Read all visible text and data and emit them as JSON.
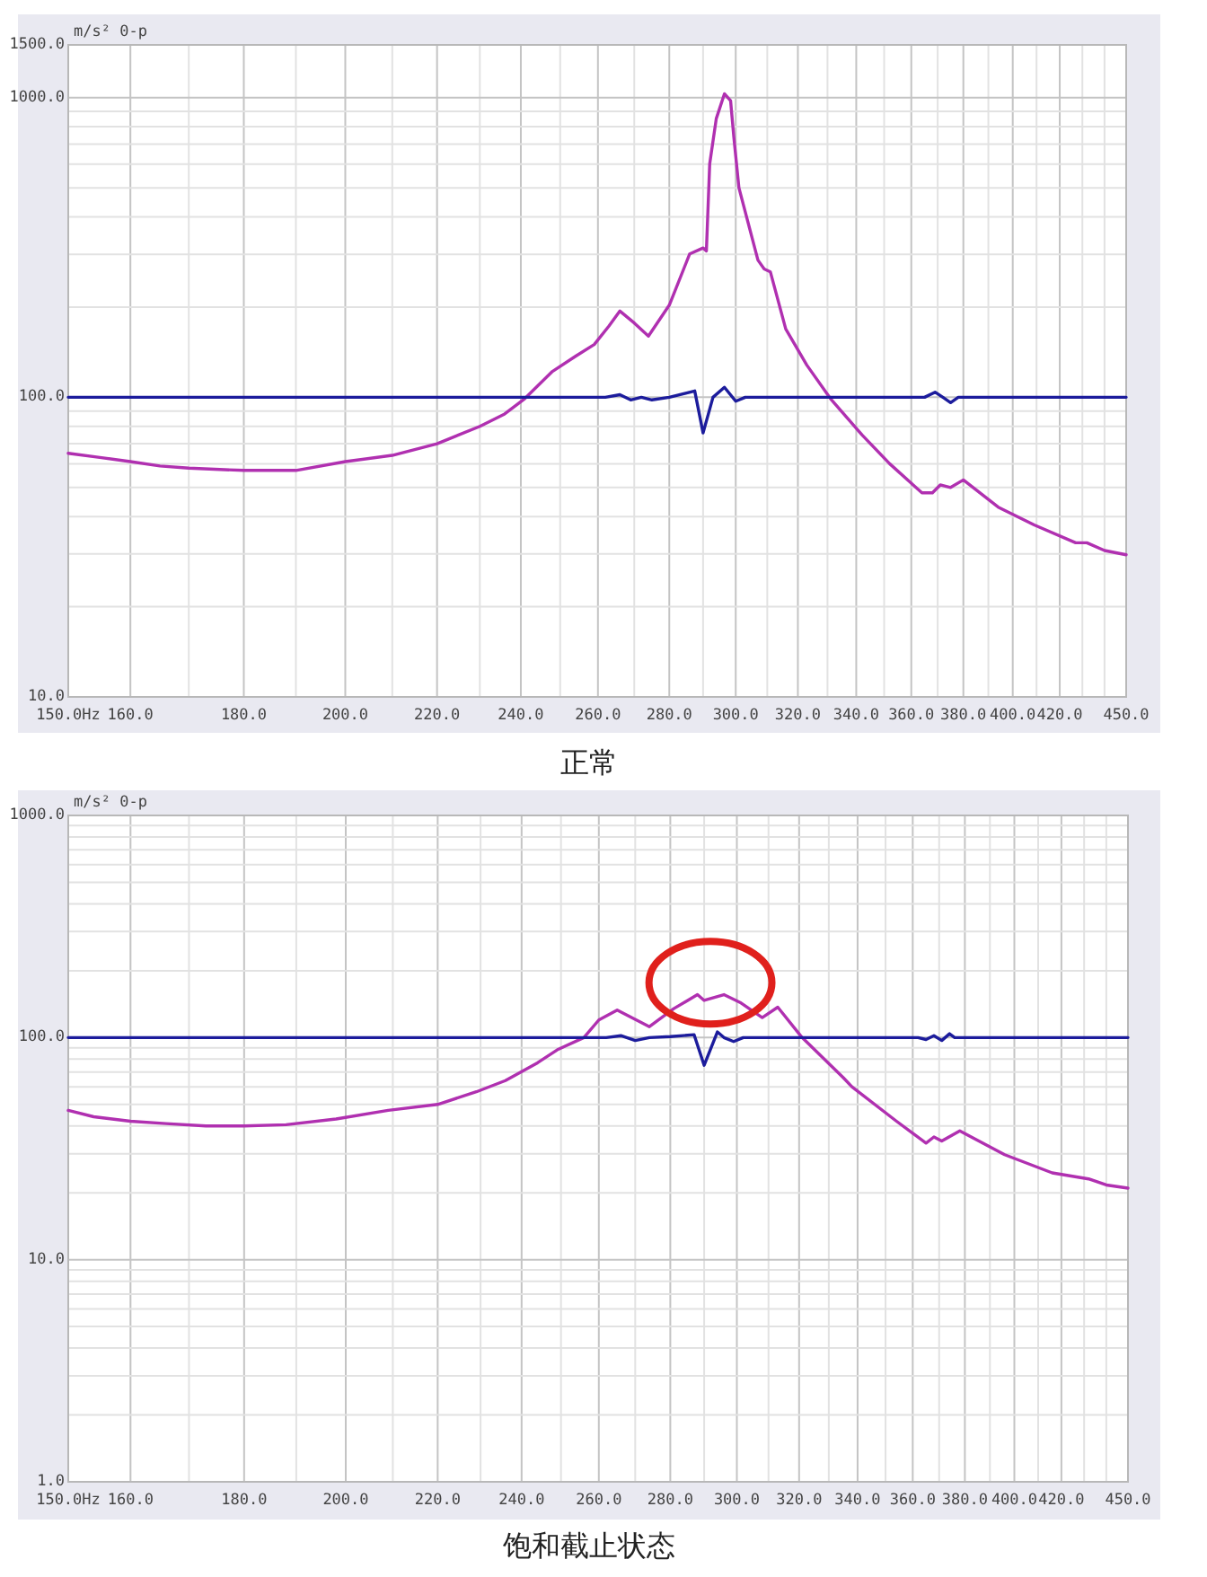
{
  "chart_data": [
    {
      "type": "line",
      "title": "正常",
      "ylabel": "m/s² 0-p",
      "log": "xy",
      "grid": true,
      "xlim": [
        150,
        450
      ],
      "ylim": [
        10,
        1500
      ],
      "xticks": [
        {
          "value": 150,
          "label": "150.0Hz"
        },
        {
          "value": 160,
          "label": "160.0"
        },
        {
          "value": 170,
          "label": null
        },
        {
          "value": 180,
          "label": "180.0"
        },
        {
          "value": 190,
          "label": null
        },
        {
          "value": 200,
          "label": "200.0"
        },
        {
          "value": 210,
          "label": null
        },
        {
          "value": 220,
          "label": "220.0"
        },
        {
          "value": 230,
          "label": null
        },
        {
          "value": 240,
          "label": "240.0"
        },
        {
          "value": 250,
          "label": null
        },
        {
          "value": 260,
          "label": "260.0"
        },
        {
          "value": 270,
          "label": null
        },
        {
          "value": 280,
          "label": "280.0"
        },
        {
          "value": 290,
          "label": null
        },
        {
          "value": 300,
          "label": "300.0"
        },
        {
          "value": 310,
          "label": null
        },
        {
          "value": 320,
          "label": "320.0"
        },
        {
          "value": 330,
          "label": null
        },
        {
          "value": 340,
          "label": "340.0"
        },
        {
          "value": 350,
          "label": null
        },
        {
          "value": 360,
          "label": "360.0"
        },
        {
          "value": 370,
          "label": null
        },
        {
          "value": 380,
          "label": "380.0"
        },
        {
          "value": 390,
          "label": null
        },
        {
          "value": 400,
          "label": "400.0"
        },
        {
          "value": 410,
          "label": null
        },
        {
          "value": 420,
          "label": "420.0"
        },
        {
          "value": 430,
          "label": null
        },
        {
          "value": 440,
          "label": null
        },
        {
          "value": 450,
          "label": "450.0"
        }
      ],
      "yticks": [
        {
          "value": 10,
          "label": "10.0"
        },
        {
          "value": 20,
          "label": null
        },
        {
          "value": 30,
          "label": null
        },
        {
          "value": 40,
          "label": null
        },
        {
          "value": 50,
          "label": null
        },
        {
          "value": 60,
          "label": null
        },
        {
          "value": 70,
          "label": null
        },
        {
          "value": 80,
          "label": null
        },
        {
          "value": 90,
          "label": null
        },
        {
          "value": 100,
          "label": "100.0"
        },
        {
          "value": 200,
          "label": null
        },
        {
          "value": 300,
          "label": null
        },
        {
          "value": 400,
          "label": null
        },
        {
          "value": 500,
          "label": null
        },
        {
          "value": 600,
          "label": null
        },
        {
          "value": 700,
          "label": null
        },
        {
          "value": 800,
          "label": null
        },
        {
          "value": 900,
          "label": null
        },
        {
          "value": 1000,
          "label": "1000.0"
        },
        {
          "value": 1500,
          "label": "1500.0"
        }
      ],
      "series": [
        {
          "color": "#b030b0",
          "x": [
            150,
            155,
            160,
            165,
            170,
            180,
            190,
            200,
            210,
            220,
            230,
            236,
            241,
            248,
            254,
            259,
            263,
            266,
            270,
            274,
            280,
            286,
            290,
            291,
            292,
            294,
            296.5,
            298.4,
            299.4,
            301,
            307,
            309,
            311,
            316,
            323,
            331,
            342,
            352,
            364,
            368,
            371,
            375,
            380,
            394,
            409,
            427,
            432,
            440,
            450
          ],
          "values": [
            65,
            63,
            61,
            59,
            58,
            57,
            57,
            61,
            64,
            70,
            80,
            88,
            99,
            122,
            137,
            150,
            173,
            194,
            177,
            160,
            203,
            301,
            315,
            308,
            601,
            851,
            1030,
            977,
            740,
            500,
            287,
            268,
            262,
            169,
            128,
            99,
            75,
            60,
            48,
            48,
            51,
            50,
            53,
            43,
            37.5,
            32.7,
            32.7,
            30.8,
            29.8
          ]
        },
        {
          "color": "#1c1c9c",
          "x": [
            150,
            262,
            266,
            269,
            272,
            275,
            280,
            287.5,
            290,
            293,
            296.5,
            300,
            303,
            365,
            369,
            372,
            375,
            378,
            450
          ],
          "values": [
            100,
            100,
            102,
            98,
            100,
            98,
            100,
            105,
            76,
            100,
            108,
            97,
            100,
            100,
            104,
            100,
            96,
            100,
            100
          ]
        }
      ]
    },
    {
      "type": "line",
      "title": "饱和截止状态",
      "ylabel": "m/s² 0-p",
      "log": "xy",
      "grid": true,
      "xlim": [
        150,
        450
      ],
      "ylim": [
        1,
        1000
      ],
      "xticks": [
        {
          "value": 150,
          "label": "150.0Hz"
        },
        {
          "value": 160,
          "label": "160.0"
        },
        {
          "value": 170,
          "label": null
        },
        {
          "value": 180,
          "label": "180.0"
        },
        {
          "value": 190,
          "label": null
        },
        {
          "value": 200,
          "label": "200.0"
        },
        {
          "value": 210,
          "label": null
        },
        {
          "value": 220,
          "label": "220.0"
        },
        {
          "value": 230,
          "label": null
        },
        {
          "value": 240,
          "label": "240.0"
        },
        {
          "value": 250,
          "label": null
        },
        {
          "value": 260,
          "label": "260.0"
        },
        {
          "value": 270,
          "label": null
        },
        {
          "value": 280,
          "label": "280.0"
        },
        {
          "value": 290,
          "label": null
        },
        {
          "value": 300,
          "label": "300.0"
        },
        {
          "value": 310,
          "label": null
        },
        {
          "value": 320,
          "label": "320.0"
        },
        {
          "value": 330,
          "label": null
        },
        {
          "value": 340,
          "label": "340.0"
        },
        {
          "value": 350,
          "label": null
        },
        {
          "value": 360,
          "label": "360.0"
        },
        {
          "value": 370,
          "label": null
        },
        {
          "value": 380,
          "label": "380.0"
        },
        {
          "value": 390,
          "label": null
        },
        {
          "value": 400,
          "label": "400.0"
        },
        {
          "value": 410,
          "label": null
        },
        {
          "value": 420,
          "label": "420.0"
        },
        {
          "value": 430,
          "label": null
        },
        {
          "value": 440,
          "label": null
        },
        {
          "value": 450,
          "label": "450.0"
        }
      ],
      "yticks": [
        {
          "value": 1,
          "label": "1.0"
        },
        {
          "value": 2,
          "label": null
        },
        {
          "value": 3,
          "label": null
        },
        {
          "value": 4,
          "label": null
        },
        {
          "value": 5,
          "label": null
        },
        {
          "value": 6,
          "label": null
        },
        {
          "value": 7,
          "label": null
        },
        {
          "value": 8,
          "label": null
        },
        {
          "value": 9,
          "label": null
        },
        {
          "value": 10,
          "label": "10.0"
        },
        {
          "value": 20,
          "label": null
        },
        {
          "value": 30,
          "label": null
        },
        {
          "value": 40,
          "label": null
        },
        {
          "value": 50,
          "label": null
        },
        {
          "value": 60,
          "label": null
        },
        {
          "value": 70,
          "label": null
        },
        {
          "value": 80,
          "label": null
        },
        {
          "value": 90,
          "label": null
        },
        {
          "value": 100,
          "label": "100.0"
        },
        {
          "value": 200,
          "label": null
        },
        {
          "value": 300,
          "label": null
        },
        {
          "value": 400,
          "label": null
        },
        {
          "value": 500,
          "label": null
        },
        {
          "value": 600,
          "label": null
        },
        {
          "value": 700,
          "label": null
        },
        {
          "value": 800,
          "label": null
        },
        {
          "value": 900,
          "label": null
        },
        {
          "value": 1000,
          "label": "1000.0"
        }
      ],
      "series": [
        {
          "color": "#b030b0",
          "x": [
            150,
            154,
            160,
            166,
            173,
            180,
            188,
            198,
            209,
            220,
            229,
            236,
            244,
            249,
            256,
            260,
            265,
            274,
            281,
            288,
            290,
            296,
            301,
            308,
            313,
            321,
            335,
            338,
            354,
            365,
            368,
            371,
            378,
            396,
            416,
            432,
            440,
            450
          ],
          "values": [
            47,
            44,
            42,
            41,
            40,
            40,
            40.5,
            43,
            47,
            50,
            57,
            64,
            77,
            88,
            100,
            120,
            133,
            112,
            135,
            156,
            147,
            156,
            144,
            123,
            137,
            100,
            66,
            60,
            42,
            33.5,
            35.7,
            34.2,
            38,
            29.7,
            24.6,
            23.1,
            21.7,
            21
          ]
        },
        {
          "color": "#1c1c9c",
          "x": [
            150,
            262,
            266,
            270,
            274,
            280,
            287,
            290,
            294,
            296,
            299,
            302,
            362,
            365,
            368,
            371,
            374,
            376,
            378,
            450
          ],
          "values": [
            100,
            100,
            102,
            97,
            100,
            101,
            103,
            75,
            106,
            100,
            96,
            100,
            100,
            98,
            102,
            97,
            104,
            100,
            100,
            100
          ]
        }
      ]
    }
  ]
}
